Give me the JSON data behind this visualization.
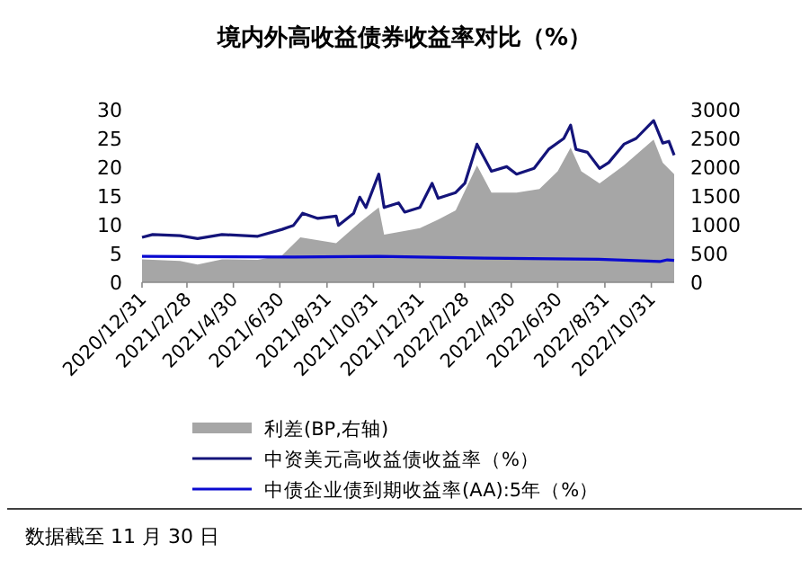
{
  "chart_data": {
    "type": "line",
    "title": "境内外高收益债券收益率对比（%）",
    "annotations": [
      "数据截至 11 月 30 日"
    ],
    "xlim": [
      "2020-12-31",
      "2022-11-30"
    ],
    "xticks": [
      {
        "value": "2020-12-31",
        "label": "2020/12/31"
      },
      {
        "value": "2021-02-28",
        "label": "2021/2/28"
      },
      {
        "value": "2021-04-30",
        "label": "2021/4/30"
      },
      {
        "value": "2021-06-30",
        "label": "2021/6/30"
      },
      {
        "value": "2021-08-31",
        "label": "2021/8/31"
      },
      {
        "value": "2021-10-31",
        "label": "2021/10/31"
      },
      {
        "value": "2021-12-31",
        "label": "2021/12/31"
      },
      {
        "value": "2022-02-28",
        "label": "2022/2/28"
      },
      {
        "value": "2022-04-30",
        "label": "2022/4/30"
      },
      {
        "value": "2022-06-30",
        "label": "2022/6/30"
      },
      {
        "value": "2022-08-31",
        "label": "2022/8/31"
      },
      {
        "value": "2022-10-31",
        "label": "2022/10/31"
      }
    ],
    "ylim": [
      0,
      30
    ],
    "yticks": [
      0,
      5,
      10,
      15,
      20,
      25,
      30
    ],
    "y2lim": [
      0,
      3000
    ],
    "y2ticks": [
      0,
      500,
      1000,
      1500,
      2000,
      2500,
      3000
    ],
    "legend": "bottom",
    "grid": false,
    "series": [
      {
        "name": "利差(BP,右轴)",
        "type": "area",
        "axis": "y2",
        "color": "#a6a6a6",
        "x": [
          "2020-12-31",
          "2021-02-19",
          "2021-03-14",
          "2021-04-15",
          "2021-06-01",
          "2021-07-03",
          "2021-07-27",
          "2021-09-12",
          "2021-10-13",
          "2021-11-07",
          "2021-11-14",
          "2021-12-31",
          "2022-01-24",
          "2022-02-16",
          "2022-03-16",
          "2022-04-04",
          "2022-05-07",
          "2022-06-06",
          "2022-06-30",
          "2022-07-17",
          "2022-07-31",
          "2022-08-24",
          "2022-09-25",
          "2022-11-03",
          "2022-11-15",
          "2022-11-30"
        ],
        "values": [
          400,
          370,
          310,
          400,
          390,
          470,
          780,
          680,
          1040,
          1300,
          830,
          940,
          1090,
          1250,
          2030,
          1560,
          1560,
          1620,
          1930,
          2340,
          1930,
          1720,
          2030,
          2480,
          2080,
          1880
        ]
      },
      {
        "name": "中资美元高收益债收益率（%）",
        "type": "line",
        "color": "#14147a",
        "x": [
          "2020-12-31",
          "2021-01-14",
          "2021-02-19",
          "2021-03-14",
          "2021-04-15",
          "2021-06-01",
          "2021-07-03",
          "2021-07-18",
          "2021-07-30",
          "2021-08-19",
          "2021-09-12",
          "2021-09-15",
          "2021-10-05",
          "2021-10-13",
          "2021-10-21",
          "2021-11-07",
          "2021-11-14",
          "2021-12-03",
          "2021-12-11",
          "2021-12-31",
          "2022-01-16",
          "2022-01-24",
          "2022-02-16",
          "2022-02-28",
          "2022-03-16",
          "2022-04-04",
          "2022-04-24",
          "2022-05-07",
          "2022-05-30",
          "2022-06-18",
          "2022-07-08",
          "2022-07-17",
          "2022-07-24",
          "2022-08-08",
          "2022-08-24",
          "2022-09-05",
          "2022-09-25",
          "2022-10-11",
          "2022-11-03",
          "2022-11-15",
          "2022-11-23",
          "2022-11-30"
        ],
        "values": [
          7.8,
          8.3,
          8.1,
          7.6,
          8.3,
          8.0,
          9.2,
          9.9,
          12.0,
          11.1,
          11.5,
          9.9,
          12.0,
          14.8,
          13.0,
          18.8,
          13.0,
          13.8,
          12.2,
          13.0,
          17.2,
          14.6,
          15.6,
          17.2,
          24.0,
          19.3,
          20.1,
          18.8,
          19.8,
          23.1,
          25.0,
          27.3,
          23.1,
          22.6,
          19.8,
          20.8,
          24.0,
          25.0,
          28.1,
          24.2,
          24.5,
          22.1
        ]
      },
      {
        "name": "中债企业债到期收益率(AA):5年（%）",
        "type": "line",
        "color": "#0a0ad0",
        "x": [
          "2020-12-31",
          "2021-07-19",
          "2021-11-07",
          "2022-03-26",
          "2022-08-23",
          "2022-11-11",
          "2022-11-21",
          "2022-11-30"
        ],
        "values": [
          4.5,
          4.4,
          4.5,
          4.2,
          4.0,
          3.6,
          3.9,
          3.8
        ]
      }
    ]
  }
}
